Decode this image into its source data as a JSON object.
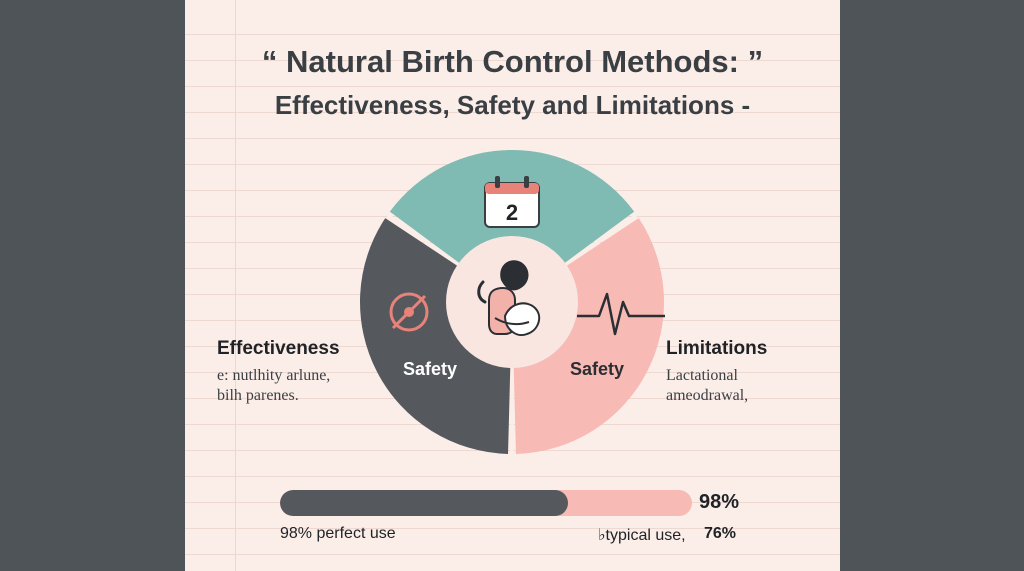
{
  "title": {
    "line1": "“ Natural Birth Control Methods: ”",
    "line2": "Effectiveness, Safety and Limitations -"
  },
  "wheel": {
    "calendar_day": "2",
    "segments": [
      {
        "name": "top",
        "label": "",
        "color": "#7fbab3",
        "icon": "calendar-icon"
      },
      {
        "name": "left",
        "label": "Safety",
        "color": "#55595e",
        "icon": "no-symbol-icon"
      },
      {
        "name": "right",
        "label": "Safety",
        "color": "#f7bab5",
        "icon": "heartbeat-icon"
      }
    ],
    "center_icon": "breastfeeding-mother-icon",
    "center_color": "#f9e6e1"
  },
  "left_panel": {
    "heading": "Effectiveness",
    "lines": [
      "e: nutlhity arlune,",
      "bilh parenes."
    ]
  },
  "right_panel": {
    "heading": "Limitations",
    "lines": [
      "Lactational",
      "ameodrawal,"
    ]
  },
  "effectiveness_bar": {
    "fill_percent": 70,
    "value_label": "98%",
    "perfect_caption": "98% perfect use",
    "typical_caption": "♭typical use,",
    "typical_value": "76%"
  },
  "colors": {
    "teal": "#7fbab3",
    "slate": "#55595e",
    "pink": "#f7bab5",
    "paper": "#fbeee9",
    "accent": "#e8837a"
  }
}
